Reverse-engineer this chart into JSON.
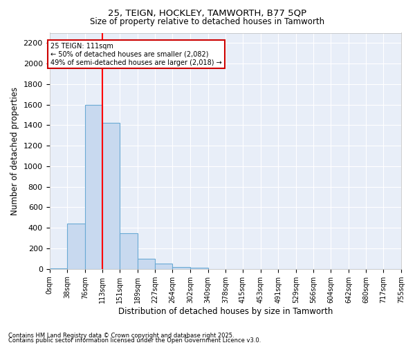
{
  "title_line1": "25, TEIGN, HOCKLEY, TAMWORTH, B77 5QP",
  "title_line2": "Size of property relative to detached houses in Tamworth",
  "xlabel": "Distribution of detached houses by size in Tamworth",
  "ylabel": "Number of detached properties",
  "bar_color": "#c8d9ef",
  "bar_edge_color": "#6aaad4",
  "background_color": "#e8eef8",
  "grid_color": "#ffffff",
  "bins": [
    0,
    38,
    76,
    113,
    151,
    189,
    227,
    264,
    302,
    340,
    378,
    415,
    453,
    491,
    529,
    566,
    604,
    642,
    680,
    717,
    755
  ],
  "bin_labels": [
    "0sqm",
    "38sqm",
    "76sqm",
    "113sqm",
    "151sqm",
    "189sqm",
    "227sqm",
    "264sqm",
    "302sqm",
    "340sqm",
    "378sqm",
    "415sqm",
    "453sqm",
    "491sqm",
    "529sqm",
    "566sqm",
    "604sqm",
    "642sqm",
    "680sqm",
    "717sqm",
    "755sqm"
  ],
  "values": [
    5,
    440,
    1600,
    1420,
    350,
    100,
    50,
    20,
    10,
    0,
    0,
    0,
    0,
    0,
    0,
    0,
    0,
    0,
    0,
    0
  ],
  "red_line_x": 113,
  "ylim": [
    0,
    2300
  ],
  "yticks": [
    0,
    200,
    400,
    600,
    800,
    1000,
    1200,
    1400,
    1600,
    1800,
    2000,
    2200
  ],
  "annotation_text": "25 TEIGN: 111sqm\n← 50% of detached houses are smaller (2,082)\n49% of semi-detached houses are larger (2,018) →",
  "annotation_box_color": "#ffffff",
  "annotation_box_edge_color": "#cc0000",
  "footnote1": "Contains HM Land Registry data © Crown copyright and database right 2025.",
  "footnote2": "Contains public sector information licensed under the Open Government Licence v3.0."
}
